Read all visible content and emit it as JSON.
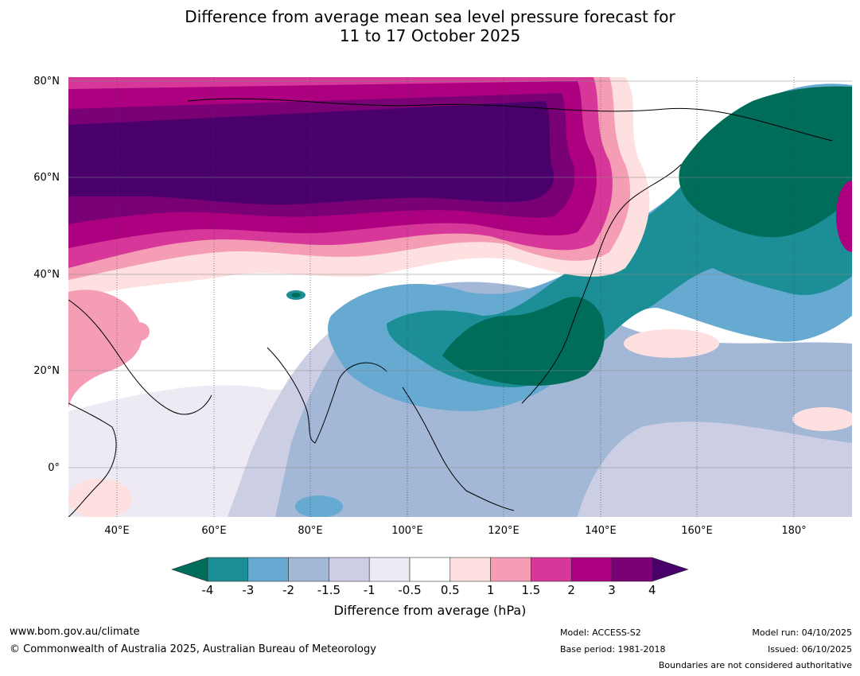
{
  "title": {
    "line1": "Difference from average mean sea level pressure forecast for",
    "line2": "11 to 17 October 2025"
  },
  "map": {
    "lat_labels": [
      "80°N",
      "60°N",
      "40°N",
      "20°N",
      "0°"
    ],
    "lon_labels": [
      "40°E",
      "60°E",
      "80°E",
      "100°E",
      "120°E",
      "140°E",
      "160°E",
      "180°"
    ]
  },
  "legend": {
    "title": "Difference from average (hPa)",
    "ticks": [
      "-4",
      "-3",
      "-2",
      "-1.5",
      "-1",
      "-0.5",
      "0.5",
      "1",
      "1.5",
      "2",
      "3",
      "4"
    ],
    "colors": {
      "below_min": "#006d5b",
      "bins": [
        "#1b8e96",
        "#66a9d1",
        "#a3b7d6",
        "#cccfe4",
        "#eeeaf3",
        "#ffffff",
        "#fde0df",
        "#f49db4",
        "#d8379a",
        "#ad0080",
        "#7a0076"
      ],
      "above_max": "#49006a"
    }
  },
  "footer": {
    "url": "www.bom.gov.au/climate",
    "copyright": "© Commonwealth of Australia 2025, Australian Bureau of Meteorology",
    "model": "Model: ACCESS-S2",
    "base_period": "Base period: 1981-2018",
    "model_run": "Model run: 04/10/2025",
    "issued": "Issued: 06/10/2025",
    "disclaimer": "Boundaries are not considered authoritative"
  }
}
